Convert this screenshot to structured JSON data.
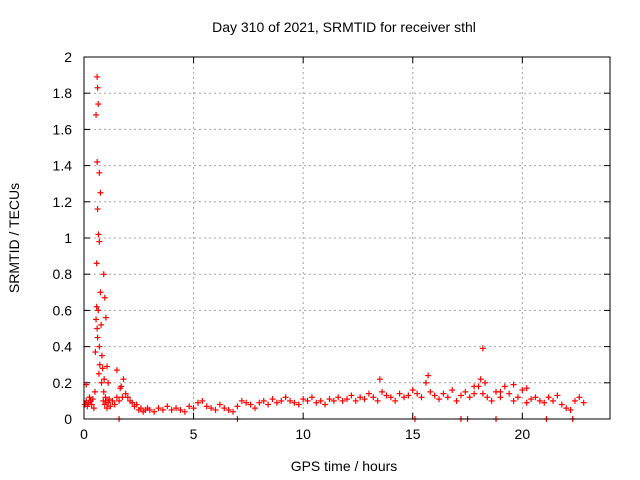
{
  "chart_data": {
    "type": "scatter",
    "title": "Day 310 of 2021, SRMTID for receiver sthl",
    "xlabel": "GPS time / hours",
    "ylabel": "SRMTID / TECUs",
    "xlim": [
      0,
      24
    ],
    "ylim": [
      0,
      2
    ],
    "xticks": [
      0,
      5,
      10,
      15,
      20
    ],
    "yticks": [
      0,
      0.2,
      0.4,
      0.6,
      0.8,
      1,
      1.2,
      1.4,
      1.6,
      1.8,
      2
    ],
    "xtick_labels": [
      "0",
      "5",
      "10",
      "15",
      "20"
    ],
    "ytick_labels": [
      "0",
      "0.2",
      "0.4",
      "0.6",
      "0.8",
      "1",
      "1.2",
      "1.4",
      "1.6",
      "1.8",
      "2"
    ],
    "grid": true,
    "marker": "+",
    "color": "#ff0000",
    "series": [
      {
        "name": "SRMTID",
        "x": [
          0.05,
          0.1,
          0.15,
          0.2,
          0.25,
          0.3,
          0.35,
          0.4,
          0.45,
          0.5,
          0.52,
          0.55,
          0.58,
          0.6,
          0.62,
          0.65,
          0.68,
          0.7,
          0.72,
          0.75,
          0.78,
          0.8,
          0.82,
          0.85,
          0.88,
          0.9,
          0.92,
          0.95,
          0.98,
          1.0,
          1.05,
          1.1,
          1.15,
          1.2,
          1.3,
          1.4,
          1.5,
          1.6,
          1.7,
          1.8,
          1.9,
          2.0,
          2.1,
          2.2,
          2.3,
          2.4,
          2.5,
          2.6,
          2.7,
          2.8,
          2.9,
          3.0,
          3.2,
          3.4,
          3.6,
          3.8,
          4.0,
          4.2,
          4.4,
          4.6,
          4.8,
          5.0,
          5.2,
          5.4,
          5.6,
          5.8,
          6.0,
          6.2,
          6.4,
          6.6,
          6.8,
          7.0,
          7.2,
          7.4,
          7.6,
          7.8,
          8.0,
          8.2,
          8.4,
          8.6,
          8.8,
          9.0,
          9.2,
          9.4,
          9.6,
          9.8,
          10.0,
          10.2,
          10.4,
          10.6,
          10.8,
          11.0,
          11.2,
          11.4,
          11.6,
          11.8,
          12.0,
          12.2,
          12.4,
          12.6,
          12.8,
          13.0,
          13.2,
          13.4,
          13.6,
          13.8,
          14.0,
          14.2,
          14.4,
          14.6,
          14.8,
          15.0,
          15.2,
          15.4,
          15.6,
          15.8,
          16.0,
          16.2,
          16.4,
          16.6,
          16.8,
          17.0,
          17.2,
          17.4,
          17.6,
          17.8,
          18.0,
          18.1,
          18.2,
          18.3,
          18.4,
          18.6,
          18.8,
          19.0,
          19.2,
          19.4,
          19.6,
          19.8,
          20.0,
          20.2,
          20.4,
          20.6,
          20.8,
          21.0,
          21.2,
          21.4,
          21.6,
          21.8,
          22.0,
          22.2,
          22.4,
          22.6,
          22.8,
          0.6,
          0.62,
          0.65,
          0.55,
          0.6,
          0.7,
          0.75,
          0.62,
          0.66,
          0.7,
          0.58,
          0.9,
          0.95,
          1.0,
          1.05,
          1.1,
          1.5,
          1.65,
          1.75,
          13.5,
          15.7,
          17.8,
          18.2,
          19.0,
          19.6,
          20.2,
          1.6,
          7.0,
          15.1,
          17.2,
          17.5,
          18.8,
          21.1,
          22.3,
          0.1
        ],
        "y": [
          0.08,
          0.1,
          0.07,
          0.09,
          0.12,
          0.1,
          0.08,
          0.11,
          0.06,
          0.15,
          0.37,
          0.55,
          0.62,
          0.5,
          0.45,
          0.6,
          0.25,
          0.4,
          0.3,
          0.7,
          0.52,
          0.2,
          0.35,
          0.28,
          0.1,
          0.15,
          0.22,
          0.08,
          0.12,
          0.1,
          0.06,
          0.09,
          0.11,
          0.07,
          0.1,
          0.08,
          0.12,
          0.1,
          0.18,
          0.22,
          0.14,
          0.12,
          0.1,
          0.09,
          0.07,
          0.08,
          0.05,
          0.06,
          0.04,
          0.05,
          0.06,
          0.05,
          0.04,
          0.06,
          0.05,
          0.07,
          0.05,
          0.06,
          0.05,
          0.04,
          0.07,
          0.06,
          0.09,
          0.1,
          0.07,
          0.06,
          0.05,
          0.08,
          0.06,
          0.05,
          0.04,
          0.07,
          0.1,
          0.09,
          0.08,
          0.06,
          0.09,
          0.1,
          0.08,
          0.11,
          0.09,
          0.1,
          0.12,
          0.1,
          0.09,
          0.08,
          0.11,
          0.1,
          0.12,
          0.09,
          0.1,
          0.08,
          0.11,
          0.1,
          0.12,
          0.1,
          0.11,
          0.13,
          0.1,
          0.12,
          0.11,
          0.14,
          0.12,
          0.1,
          0.15,
          0.13,
          0.12,
          0.1,
          0.14,
          0.12,
          0.13,
          0.16,
          0.14,
          0.12,
          0.2,
          0.15,
          0.13,
          0.11,
          0.14,
          0.12,
          0.16,
          0.1,
          0.13,
          0.15,
          0.12,
          0.14,
          0.18,
          0.22,
          0.39,
          0.2,
          0.12,
          0.1,
          0.15,
          0.12,
          0.18,
          0.14,
          0.1,
          0.12,
          0.16,
          0.09,
          0.11,
          0.12,
          0.1,
          0.09,
          0.12,
          0.1,
          0.13,
          0.08,
          0.06,
          0.05,
          0.1,
          0.12,
          0.09,
          1.89,
          1.83,
          1.74,
          1.68,
          1.42,
          1.36,
          1.25,
          1.16,
          1.02,
          0.98,
          0.86,
          0.8,
          0.67,
          0.56,
          0.29,
          0.2,
          0.27,
          0.17,
          0.12,
          0.22,
          0.24,
          0.18,
          0.14,
          0.15,
          0.19,
          0.17,
          0.0,
          0.0,
          0.0,
          0.0,
          0.0,
          0.0,
          0.0,
          0.0,
          0.19
        ]
      }
    ]
  }
}
